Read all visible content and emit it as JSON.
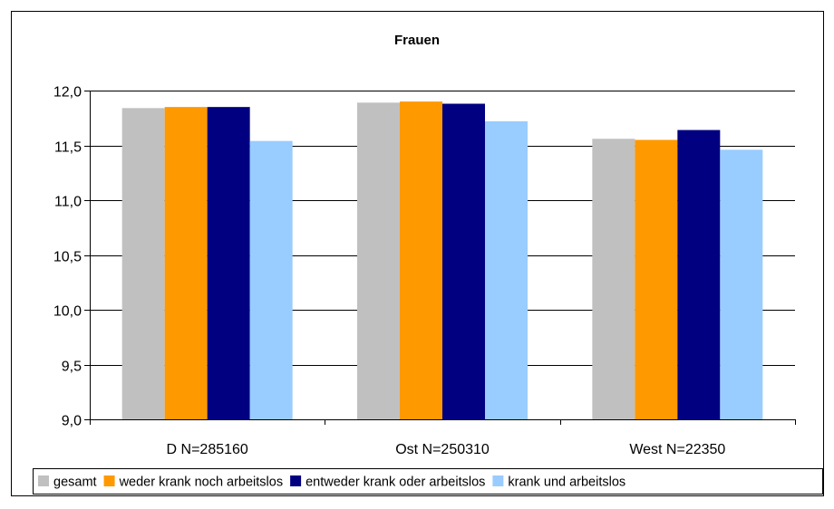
{
  "chart_data": {
    "type": "bar",
    "title": "Frauen",
    "xlabel": "",
    "ylabel": "",
    "categories": [
      "D N=285160",
      "Ost N=250310",
      "West N=22350"
    ],
    "ylim": [
      9.0,
      12.0
    ],
    "yticks": [
      "9,0",
      "9,5",
      "10,0",
      "10,5",
      "11,0",
      "11,5",
      "12,0"
    ],
    "yticks_values": [
      9.0,
      9.5,
      10.0,
      10.5,
      11.0,
      11.5,
      12.0
    ],
    "grid": true,
    "legend_position": "bottom",
    "series": [
      {
        "name": "gesamt",
        "color": "#c0c0c0",
        "values": [
          11.84,
          11.89,
          11.56
        ]
      },
      {
        "name": "weder krank noch arbeitslos",
        "color": "#ff9900",
        "values": [
          11.85,
          11.9,
          11.55
        ]
      },
      {
        "name": "entweder krank oder arbeitslos",
        "color": "#000080",
        "values": [
          11.85,
          11.88,
          11.64
        ]
      },
      {
        "name": "krank und arbeitslos",
        "color": "#99ccff",
        "values": [
          11.54,
          11.72,
          11.46
        ]
      }
    ]
  }
}
